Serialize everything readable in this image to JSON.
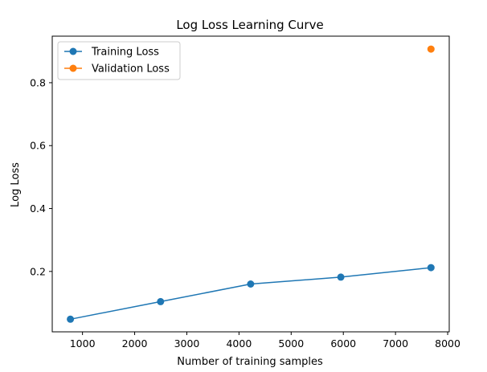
{
  "chart_data": {
    "type": "line",
    "title": "Log Loss Learning Curve",
    "xlabel": "Number of training samples",
    "ylabel": "Log Loss",
    "xlim": [
      420,
      8030
    ],
    "ylim": [
      0.008,
      0.948
    ],
    "x_ticks": [
      1000,
      2000,
      3000,
      4000,
      5000,
      6000,
      7000,
      8000
    ],
    "y_ticks": [
      0.2,
      0.4,
      0.6,
      0.8
    ],
    "y_tick_labels": [
      "0.2",
      "0.4",
      "0.6",
      "0.8"
    ],
    "grid": false,
    "legend_position": "upper-left",
    "series": [
      {
        "name": "Training Loss",
        "color": "#1f77b4",
        "x": [
          768,
          2496,
          4224,
          5952,
          7680
        ],
        "y": [
          0.048,
          0.104,
          0.16,
          0.182,
          0.212
        ]
      },
      {
        "name": "Validation Loss",
        "color": "#ff7f0e",
        "x": [
          7680
        ],
        "y": [
          0.907
        ]
      }
    ]
  }
}
